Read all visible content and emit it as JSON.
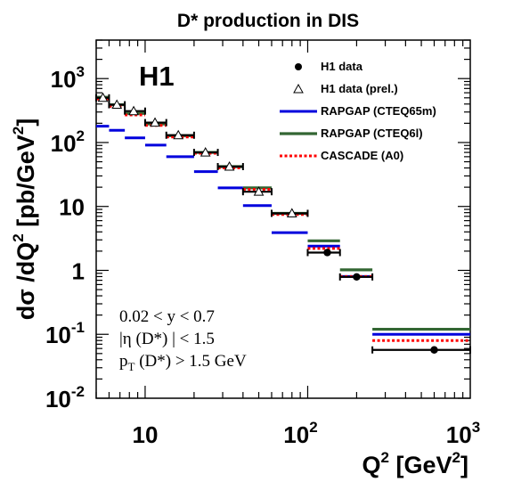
{
  "chart_data": {
    "type": "scatter",
    "title": "D* production in DIS",
    "xlabel": "Q² [GeV²]",
    "ylabel": "dσ /dQ² [pb/GeV²]",
    "xscale": "log",
    "yscale": "log",
    "xlim": [
      5,
      1000
    ],
    "ylim": [
      0.01,
      4000
    ],
    "experiment_label": "H1",
    "x_ticks": [
      {
        "value": 10,
        "label": "10"
      },
      {
        "value": 100,
        "label": "10",
        "sup": "2"
      },
      {
        "value": 1000,
        "label": "10",
        "sup": "3"
      }
    ],
    "y_ticks": [
      {
        "value": 0.01,
        "label": "10",
        "sup": "-2"
      },
      {
        "value": 0.1,
        "label": "10",
        "sup": "-1"
      },
      {
        "value": 1,
        "label": "1"
      },
      {
        "value": 10,
        "label": "10"
      },
      {
        "value": 100,
        "label": "10",
        "sup": "2"
      },
      {
        "value": 1000,
        "label": "10",
        "sup": "3"
      }
    ],
    "cuts": [
      "0.02 < y < 0.7",
      "|η (D*) | < 1.5",
      "p_T (D*) > 1.5 GeV"
    ],
    "legend_position": "top-right",
    "legend": [
      {
        "name": "H1 data",
        "style": "dot"
      },
      {
        "name": "H1 data (prel.)",
        "style": "triangle"
      },
      {
        "name": "RAPGAP (CTEQ65m)",
        "style": "blue"
      },
      {
        "name": "RAPGAP (CTEQ6l)",
        "style": "green"
      },
      {
        "name": "CASCADE (A0)",
        "style": "dotted-red"
      }
    ],
    "colors": {
      "blue": "#0000dd",
      "green": "#336633",
      "red": "#ff0000",
      "data": "#000000"
    },
    "series": [
      {
        "name": "H1 data",
        "points": [
          {
            "x": 132,
            "y": 1.9,
            "xlo": 100,
            "xhi": 158
          },
          {
            "x": 200,
            "y": 0.79,
            "xlo": 158,
            "xhi": 250
          },
          {
            "x": 600,
            "y": 0.057,
            "xlo": 250,
            "xhi": 1000
          }
        ]
      },
      {
        "name": "H1 data (prel.)",
        "points": [
          {
            "x": 5.5,
            "y": 500,
            "xlo": 5,
            "xhi": 6
          },
          {
            "x": 6.7,
            "y": 390,
            "xlo": 6,
            "xhi": 7.5
          },
          {
            "x": 8.5,
            "y": 310,
            "xlo": 7.5,
            "xhi": 10
          },
          {
            "x": 11.5,
            "y": 205,
            "xlo": 10,
            "xhi": 13.5
          },
          {
            "x": 16,
            "y": 130,
            "xlo": 13.5,
            "xhi": 20
          },
          {
            "x": 23.5,
            "y": 70,
            "xlo": 20,
            "xhi": 28
          },
          {
            "x": 33,
            "y": 42,
            "xlo": 28,
            "xhi": 40
          },
          {
            "x": 50,
            "y": 17,
            "xlo": 40,
            "xhi": 60
          },
          {
            "x": 80,
            "y": 7.8,
            "xlo": 60,
            "xhi": 100
          }
        ]
      },
      {
        "name": "RAPGAP (CTEQ65m)",
        "bins": [
          {
            "xlo": 5,
            "xhi": 6,
            "y": 180
          },
          {
            "xlo": 6,
            "xhi": 7.5,
            "y": 155
          },
          {
            "xlo": 7.5,
            "xhi": 10,
            "y": 118
          },
          {
            "xlo": 10,
            "xhi": 13.5,
            "y": 91
          },
          {
            "xlo": 13.5,
            "xhi": 20,
            "y": 60
          },
          {
            "xlo": 20,
            "xhi": 28,
            "y": 35
          },
          {
            "xlo": 28,
            "xhi": 40,
            "y": 19.5
          },
          {
            "xlo": 40,
            "xhi": 60,
            "y": 10.3
          },
          {
            "xlo": 60,
            "xhi": 100,
            "y": 3.9
          },
          {
            "xlo": 100,
            "xhi": 158,
            "y": 2.4
          },
          {
            "xlo": 158,
            "xhi": 250,
            "y": 0.8
          },
          {
            "xlo": 250,
            "xhi": 1000,
            "y": 0.1
          }
        ]
      },
      {
        "name": "RAPGAP (CTEQ6l)",
        "bins": [
          {
            "xlo": 5,
            "xhi": 6,
            "y": 510
          },
          {
            "xlo": 6,
            "xhi": 7.5,
            "y": 390
          },
          {
            "xlo": 7.5,
            "xhi": 10,
            "y": 285
          },
          {
            "xlo": 10,
            "xhi": 13.5,
            "y": 195
          },
          {
            "xlo": 13.5,
            "xhi": 20,
            "y": 128
          },
          {
            "xlo": 20,
            "xhi": 28,
            "y": 70
          },
          {
            "xlo": 28,
            "xhi": 40,
            "y": 42
          },
          {
            "xlo": 40,
            "xhi": 60,
            "y": 19.5
          },
          {
            "xlo": 60,
            "xhi": 100,
            "y": 7.8
          },
          {
            "xlo": 100,
            "xhi": 158,
            "y": 2.9
          },
          {
            "xlo": 158,
            "xhi": 250,
            "y": 1.02
          },
          {
            "xlo": 250,
            "xhi": 1000,
            "y": 0.12
          }
        ]
      },
      {
        "name": "CASCADE (A0)",
        "bins": [
          {
            "xlo": 5,
            "xhi": 6,
            "y": 480
          },
          {
            "xlo": 6,
            "xhi": 7.5,
            "y": 370
          },
          {
            "xlo": 7.5,
            "xhi": 10,
            "y": 270
          },
          {
            "xlo": 10,
            "xhi": 13.5,
            "y": 185
          },
          {
            "xlo": 13.5,
            "xhi": 20,
            "y": 122
          },
          {
            "xlo": 20,
            "xhi": 28,
            "y": 68
          },
          {
            "xlo": 28,
            "xhi": 40,
            "y": 40
          },
          {
            "xlo": 40,
            "xhi": 60,
            "y": 18.5
          },
          {
            "xlo": 60,
            "xhi": 100,
            "y": 7.5
          },
          {
            "xlo": 100,
            "xhi": 158,
            "y": 2.2
          },
          {
            "xlo": 158,
            "xhi": 250,
            "y": 0.8
          },
          {
            "xlo": 250,
            "xhi": 1000,
            "y": 0.08
          }
        ]
      }
    ]
  }
}
